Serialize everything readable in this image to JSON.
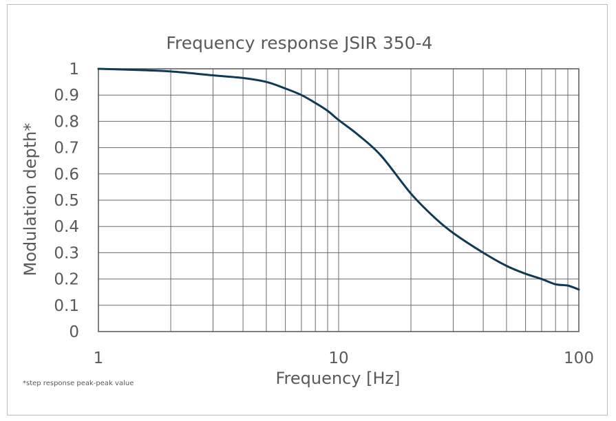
{
  "chart_data": {
    "type": "line",
    "title": "Frequency response JSIR 350-4",
    "xlabel": "Frequency [Hz]",
    "ylabel": "Modulation depth*",
    "footnote": "*step response peak-peak value",
    "x_scale": "log",
    "xlim": [
      1,
      100
    ],
    "ylim": [
      0,
      1
    ],
    "grid": true,
    "legend": "none",
    "x_ticks": [
      {
        "value": 1,
        "label": "1"
      },
      {
        "value": 10,
        "label": "10"
      },
      {
        "value": 100,
        "label": "100"
      }
    ],
    "y_ticks": [
      {
        "value": 0,
        "label": "0"
      },
      {
        "value": 0.1,
        "label": "0.1"
      },
      {
        "value": 0.2,
        "label": "0.2"
      },
      {
        "value": 0.3,
        "label": "0.3"
      },
      {
        "value": 0.4,
        "label": "0.4"
      },
      {
        "value": 0.5,
        "label": "0.5"
      },
      {
        "value": 0.6,
        "label": "0.6"
      },
      {
        "value": 0.7,
        "label": "0.7"
      },
      {
        "value": 0.8,
        "label": "0.8"
      },
      {
        "value": 0.9,
        "label": "0.9"
      },
      {
        "value": 1,
        "label": "1"
      }
    ],
    "series": [
      {
        "color": "#0f3a55",
        "x": [
          1,
          1.5,
          2,
          3,
          4,
          5,
          6,
          7,
          8,
          9,
          10,
          12,
          15,
          20,
          25,
          30,
          40,
          50,
          60,
          70,
          80,
          90,
          100
        ],
        "y": [
          1.0,
          0.995,
          0.99,
          0.975,
          0.965,
          0.95,
          0.925,
          0.9,
          0.87,
          0.84,
          0.805,
          0.75,
          0.67,
          0.525,
          0.435,
          0.375,
          0.3,
          0.25,
          0.22,
          0.2,
          0.18,
          0.175,
          0.16
        ]
      }
    ]
  }
}
